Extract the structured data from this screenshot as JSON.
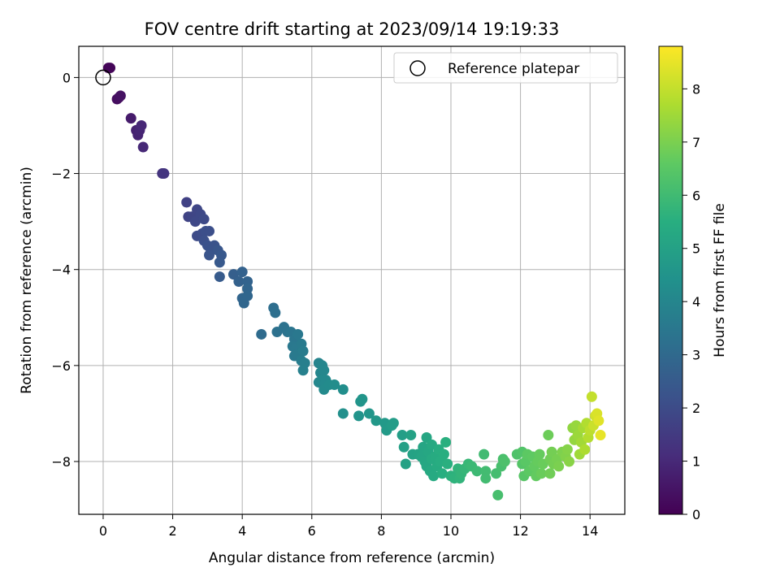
{
  "chart_data": {
    "type": "scatter",
    "title": "FOV centre drift starting at 2023/09/14 19:19:33",
    "xlabel": "Angular distance from reference (arcmin)",
    "ylabel": "Rotation from reference (arcmin)",
    "colorbar_label": "Hours from first FF file",
    "colormap": "viridis",
    "grid": true,
    "legend": {
      "placement": "top-right",
      "label": "Reference platepar"
    },
    "xlim": [
      -0.7,
      15.0
    ],
    "ylim": [
      -9.1,
      0.65
    ],
    "xticks": [
      0,
      2,
      4,
      6,
      8,
      10,
      12,
      14
    ],
    "yticks": [
      0,
      -2,
      -4,
      -6,
      -8
    ],
    "colorbar_range": [
      0,
      8.8
    ],
    "colorbar_ticks": [
      0,
      1,
      2,
      3,
      4,
      5,
      6,
      7,
      8
    ],
    "reference_point": {
      "x": 0,
      "y": 0
    },
    "points": [
      {
        "x": 0.15,
        "y": 0.2,
        "t": 0.05
      },
      {
        "x": 0.2,
        "y": 0.2,
        "t": 0.1
      },
      {
        "x": 0.4,
        "y": -0.45,
        "t": 0.3
      },
      {
        "x": 0.45,
        "y": -0.42,
        "t": 0.35
      },
      {
        "x": 0.5,
        "y": -0.38,
        "t": 0.4
      },
      {
        "x": 0.8,
        "y": -0.85,
        "t": 0.65
      },
      {
        "x": 0.95,
        "y": -1.1,
        "t": 0.8
      },
      {
        "x": 1.0,
        "y": -1.2,
        "t": 0.85
      },
      {
        "x": 1.05,
        "y": -1.1,
        "t": 0.9
      },
      {
        "x": 1.1,
        "y": -1.0,
        "t": 0.95
      },
      {
        "x": 1.15,
        "y": -1.45,
        "t": 1.0
      },
      {
        "x": 1.7,
        "y": -2.0,
        "t": 1.3
      },
      {
        "x": 1.75,
        "y": -2.0,
        "t": 1.35
      },
      {
        "x": 2.4,
        "y": -2.6,
        "t": 1.7
      },
      {
        "x": 2.45,
        "y": -2.9,
        "t": 1.75
      },
      {
        "x": 2.55,
        "y": -2.9,
        "t": 1.8
      },
      {
        "x": 2.7,
        "y": -2.75,
        "t": 1.85
      },
      {
        "x": 2.8,
        "y": -2.85,
        "t": 1.9
      },
      {
        "x": 2.65,
        "y": -3.0,
        "t": 1.9
      },
      {
        "x": 2.9,
        "y": -2.95,
        "t": 1.95
      },
      {
        "x": 2.7,
        "y": -3.3,
        "t": 2.0
      },
      {
        "x": 2.85,
        "y": -3.25,
        "t": 2.05
      },
      {
        "x": 2.95,
        "y": -3.2,
        "t": 2.1
      },
      {
        "x": 3.05,
        "y": -3.2,
        "t": 2.1
      },
      {
        "x": 2.9,
        "y": -3.4,
        "t": 2.15
      },
      {
        "x": 3.0,
        "y": -3.5,
        "t": 2.2
      },
      {
        "x": 3.1,
        "y": -3.6,
        "t": 2.25
      },
      {
        "x": 3.2,
        "y": -3.5,
        "t": 2.25
      },
      {
        "x": 3.05,
        "y": -3.7,
        "t": 2.3
      },
      {
        "x": 3.3,
        "y": -3.6,
        "t": 2.35
      },
      {
        "x": 3.4,
        "y": -3.7,
        "t": 2.4
      },
      {
        "x": 3.35,
        "y": -3.85,
        "t": 2.45
      },
      {
        "x": 3.35,
        "y": -4.15,
        "t": 2.5
      },
      {
        "x": 3.75,
        "y": -4.1,
        "t": 2.65
      },
      {
        "x": 3.9,
        "y": -4.25,
        "t": 2.7
      },
      {
        "x": 4.0,
        "y": -4.05,
        "t": 2.75
      },
      {
        "x": 4.15,
        "y": -4.25,
        "t": 2.8
      },
      {
        "x": 4.15,
        "y": -4.4,
        "t": 2.85
      },
      {
        "x": 4.0,
        "y": -4.6,
        "t": 2.85
      },
      {
        "x": 4.05,
        "y": -4.7,
        "t": 2.9
      },
      {
        "x": 4.15,
        "y": -4.55,
        "t": 2.9
      },
      {
        "x": 4.55,
        "y": -5.35,
        "t": 3.05
      },
      {
        "x": 4.9,
        "y": -4.8,
        "t": 3.15
      },
      {
        "x": 4.95,
        "y": -4.9,
        "t": 3.2
      },
      {
        "x": 5.0,
        "y": -5.3,
        "t": 3.25
      },
      {
        "x": 5.2,
        "y": -5.2,
        "t": 3.3
      },
      {
        "x": 5.3,
        "y": -5.3,
        "t": 3.35
      },
      {
        "x": 5.4,
        "y": -5.3,
        "t": 3.4
      },
      {
        "x": 5.5,
        "y": -5.45,
        "t": 3.45
      },
      {
        "x": 5.6,
        "y": -5.35,
        "t": 3.5
      },
      {
        "x": 5.45,
        "y": -5.6,
        "t": 3.5
      },
      {
        "x": 5.55,
        "y": -5.65,
        "t": 3.55
      },
      {
        "x": 5.5,
        "y": -5.8,
        "t": 3.55
      },
      {
        "x": 5.6,
        "y": -5.75,
        "t": 3.6
      },
      {
        "x": 5.7,
        "y": -5.55,
        "t": 3.6
      },
      {
        "x": 5.75,
        "y": -5.7,
        "t": 3.65
      },
      {
        "x": 5.7,
        "y": -5.9,
        "t": 3.7
      },
      {
        "x": 5.8,
        "y": -5.95,
        "t": 3.75
      },
      {
        "x": 5.75,
        "y": -6.1,
        "t": 3.8
      },
      {
        "x": 6.2,
        "y": -5.95,
        "t": 3.95
      },
      {
        "x": 6.3,
        "y": -6.0,
        "t": 4.0
      },
      {
        "x": 6.25,
        "y": -6.15,
        "t": 4.0
      },
      {
        "x": 6.35,
        "y": -6.1,
        "t": 4.05
      },
      {
        "x": 6.2,
        "y": -6.35,
        "t": 4.05
      },
      {
        "x": 6.3,
        "y": -6.3,
        "t": 4.1
      },
      {
        "x": 6.4,
        "y": -6.3,
        "t": 4.1
      },
      {
        "x": 6.35,
        "y": -6.5,
        "t": 4.15
      },
      {
        "x": 6.5,
        "y": -6.4,
        "t": 4.2
      },
      {
        "x": 6.65,
        "y": -6.4,
        "t": 4.25
      },
      {
        "x": 6.9,
        "y": -6.5,
        "t": 4.3
      },
      {
        "x": 6.9,
        "y": -7.0,
        "t": 4.35
      },
      {
        "x": 7.35,
        "y": -7.05,
        "t": 4.5
      },
      {
        "x": 7.4,
        "y": -6.75,
        "t": 4.5
      },
      {
        "x": 7.45,
        "y": -6.7,
        "t": 4.55
      },
      {
        "x": 7.65,
        "y": -7.0,
        "t": 4.6
      },
      {
        "x": 7.85,
        "y": -7.15,
        "t": 4.65
      },
      {
        "x": 8.1,
        "y": -7.2,
        "t": 4.7
      },
      {
        "x": 8.15,
        "y": -7.35,
        "t": 4.75
      },
      {
        "x": 8.3,
        "y": -7.25,
        "t": 4.8
      },
      {
        "x": 8.35,
        "y": -7.2,
        "t": 4.8
      },
      {
        "x": 8.6,
        "y": -7.45,
        "t": 4.9
      },
      {
        "x": 8.65,
        "y": -7.7,
        "t": 4.95
      },
      {
        "x": 8.7,
        "y": -8.05,
        "t": 5.0
      },
      {
        "x": 8.85,
        "y": -7.45,
        "t": 5.0
      },
      {
        "x": 8.9,
        "y": -7.85,
        "t": 5.05
      },
      {
        "x": 9.05,
        "y": -7.85,
        "t": 5.1
      },
      {
        "x": 9.15,
        "y": -7.9,
        "t": 5.15
      },
      {
        "x": 9.2,
        "y": -7.7,
        "t": 5.15
      },
      {
        "x": 9.25,
        "y": -8.0,
        "t": 5.2
      },
      {
        "x": 9.3,
        "y": -7.5,
        "t": 5.2
      },
      {
        "x": 9.3,
        "y": -8.1,
        "t": 5.25
      },
      {
        "x": 9.35,
        "y": -7.8,
        "t": 5.25
      },
      {
        "x": 9.4,
        "y": -8.2,
        "t": 5.3
      },
      {
        "x": 9.45,
        "y": -7.65,
        "t": 5.3
      },
      {
        "x": 9.45,
        "y": -7.95,
        "t": 5.35
      },
      {
        "x": 9.5,
        "y": -8.3,
        "t": 5.35
      },
      {
        "x": 9.55,
        "y": -7.9,
        "t": 5.4
      },
      {
        "x": 9.6,
        "y": -8.1,
        "t": 5.4
      },
      {
        "x": 9.65,
        "y": -7.75,
        "t": 5.45
      },
      {
        "x": 9.7,
        "y": -8.0,
        "t": 5.45
      },
      {
        "x": 9.75,
        "y": -8.25,
        "t": 5.5
      },
      {
        "x": 9.8,
        "y": -7.85,
        "t": 5.5
      },
      {
        "x": 9.85,
        "y": -7.6,
        "t": 5.55
      },
      {
        "x": 9.9,
        "y": -8.05,
        "t": 5.55
      },
      {
        "x": 10.0,
        "y": -8.3,
        "t": 5.6
      },
      {
        "x": 10.1,
        "y": -8.35,
        "t": 5.65
      },
      {
        "x": 10.2,
        "y": -8.15,
        "t": 5.7
      },
      {
        "x": 10.25,
        "y": -8.35,
        "t": 5.7
      },
      {
        "x": 10.3,
        "y": -8.25,
        "t": 5.75
      },
      {
        "x": 10.4,
        "y": -8.15,
        "t": 5.8
      },
      {
        "x": 10.5,
        "y": -8.05,
        "t": 5.85
      },
      {
        "x": 10.6,
        "y": -8.1,
        "t": 5.9
      },
      {
        "x": 10.75,
        "y": -8.2,
        "t": 5.95
      },
      {
        "x": 10.95,
        "y": -7.85,
        "t": 6.0
      },
      {
        "x": 11.0,
        "y": -8.2,
        "t": 6.05
      },
      {
        "x": 11.0,
        "y": -8.35,
        "t": 6.05
      },
      {
        "x": 11.3,
        "y": -8.25,
        "t": 6.1
      },
      {
        "x": 11.35,
        "y": -8.7,
        "t": 6.15
      },
      {
        "x": 11.45,
        "y": -8.1,
        "t": 6.15
      },
      {
        "x": 11.5,
        "y": -7.95,
        "t": 6.2
      },
      {
        "x": 11.55,
        "y": -8.0,
        "t": 6.25
      },
      {
        "x": 11.9,
        "y": -7.85,
        "t": 6.3
      },
      {
        "x": 12.05,
        "y": -7.8,
        "t": 6.35
      },
      {
        "x": 12.05,
        "y": -8.05,
        "t": 6.4
      },
      {
        "x": 12.1,
        "y": -8.3,
        "t": 6.45
      },
      {
        "x": 12.15,
        "y": -8.0,
        "t": 6.5
      },
      {
        "x": 12.2,
        "y": -7.85,
        "t": 6.55
      },
      {
        "x": 12.25,
        "y": -8.2,
        "t": 6.55
      },
      {
        "x": 12.35,
        "y": -7.9,
        "t": 6.6
      },
      {
        "x": 12.4,
        "y": -8.1,
        "t": 6.65
      },
      {
        "x": 12.45,
        "y": -8.3,
        "t": 6.65
      },
      {
        "x": 12.5,
        "y": -8.0,
        "t": 6.7
      },
      {
        "x": 12.55,
        "y": -7.85,
        "t": 6.7
      },
      {
        "x": 12.6,
        "y": -8.25,
        "t": 6.75
      },
      {
        "x": 12.65,
        "y": -8.05,
        "t": 6.75
      },
      {
        "x": 12.8,
        "y": -7.45,
        "t": 6.8
      },
      {
        "x": 12.85,
        "y": -7.95,
        "t": 6.85
      },
      {
        "x": 12.85,
        "y": -8.25,
        "t": 6.85
      },
      {
        "x": 12.9,
        "y": -7.8,
        "t": 6.9
      },
      {
        "x": 12.95,
        "y": -8.05,
        "t": 6.9
      },
      {
        "x": 13.05,
        "y": -7.95,
        "t": 6.95
      },
      {
        "x": 13.1,
        "y": -8.1,
        "t": 7.0
      },
      {
        "x": 13.2,
        "y": -7.8,
        "t": 7.05
      },
      {
        "x": 13.3,
        "y": -7.9,
        "t": 7.1
      },
      {
        "x": 13.35,
        "y": -7.75,
        "t": 7.15
      },
      {
        "x": 13.4,
        "y": -8.0,
        "t": 7.2
      },
      {
        "x": 13.5,
        "y": -7.3,
        "t": 7.3
      },
      {
        "x": 13.55,
        "y": -7.55,
        "t": 7.35
      },
      {
        "x": 13.6,
        "y": -7.25,
        "t": 7.4
      },
      {
        "x": 13.65,
        "y": -7.45,
        "t": 7.45
      },
      {
        "x": 13.7,
        "y": -7.85,
        "t": 7.5
      },
      {
        "x": 13.75,
        "y": -7.6,
        "t": 7.55
      },
      {
        "x": 13.8,
        "y": -7.3,
        "t": 7.6
      },
      {
        "x": 13.85,
        "y": -7.75,
        "t": 7.7
      },
      {
        "x": 13.9,
        "y": -7.2,
        "t": 7.75
      },
      {
        "x": 13.95,
        "y": -7.5,
        "t": 7.8
      },
      {
        "x": 14.0,
        "y": -7.35,
        "t": 7.9
      },
      {
        "x": 14.05,
        "y": -6.65,
        "t": 8.0
      },
      {
        "x": 14.1,
        "y": -7.25,
        "t": 8.1
      },
      {
        "x": 14.15,
        "y": -7.05,
        "t": 8.2
      },
      {
        "x": 14.2,
        "y": -7.0,
        "t": 8.3
      },
      {
        "x": 14.25,
        "y": -7.15,
        "t": 8.4
      },
      {
        "x": 14.3,
        "y": -7.45,
        "t": 8.5
      }
    ]
  }
}
